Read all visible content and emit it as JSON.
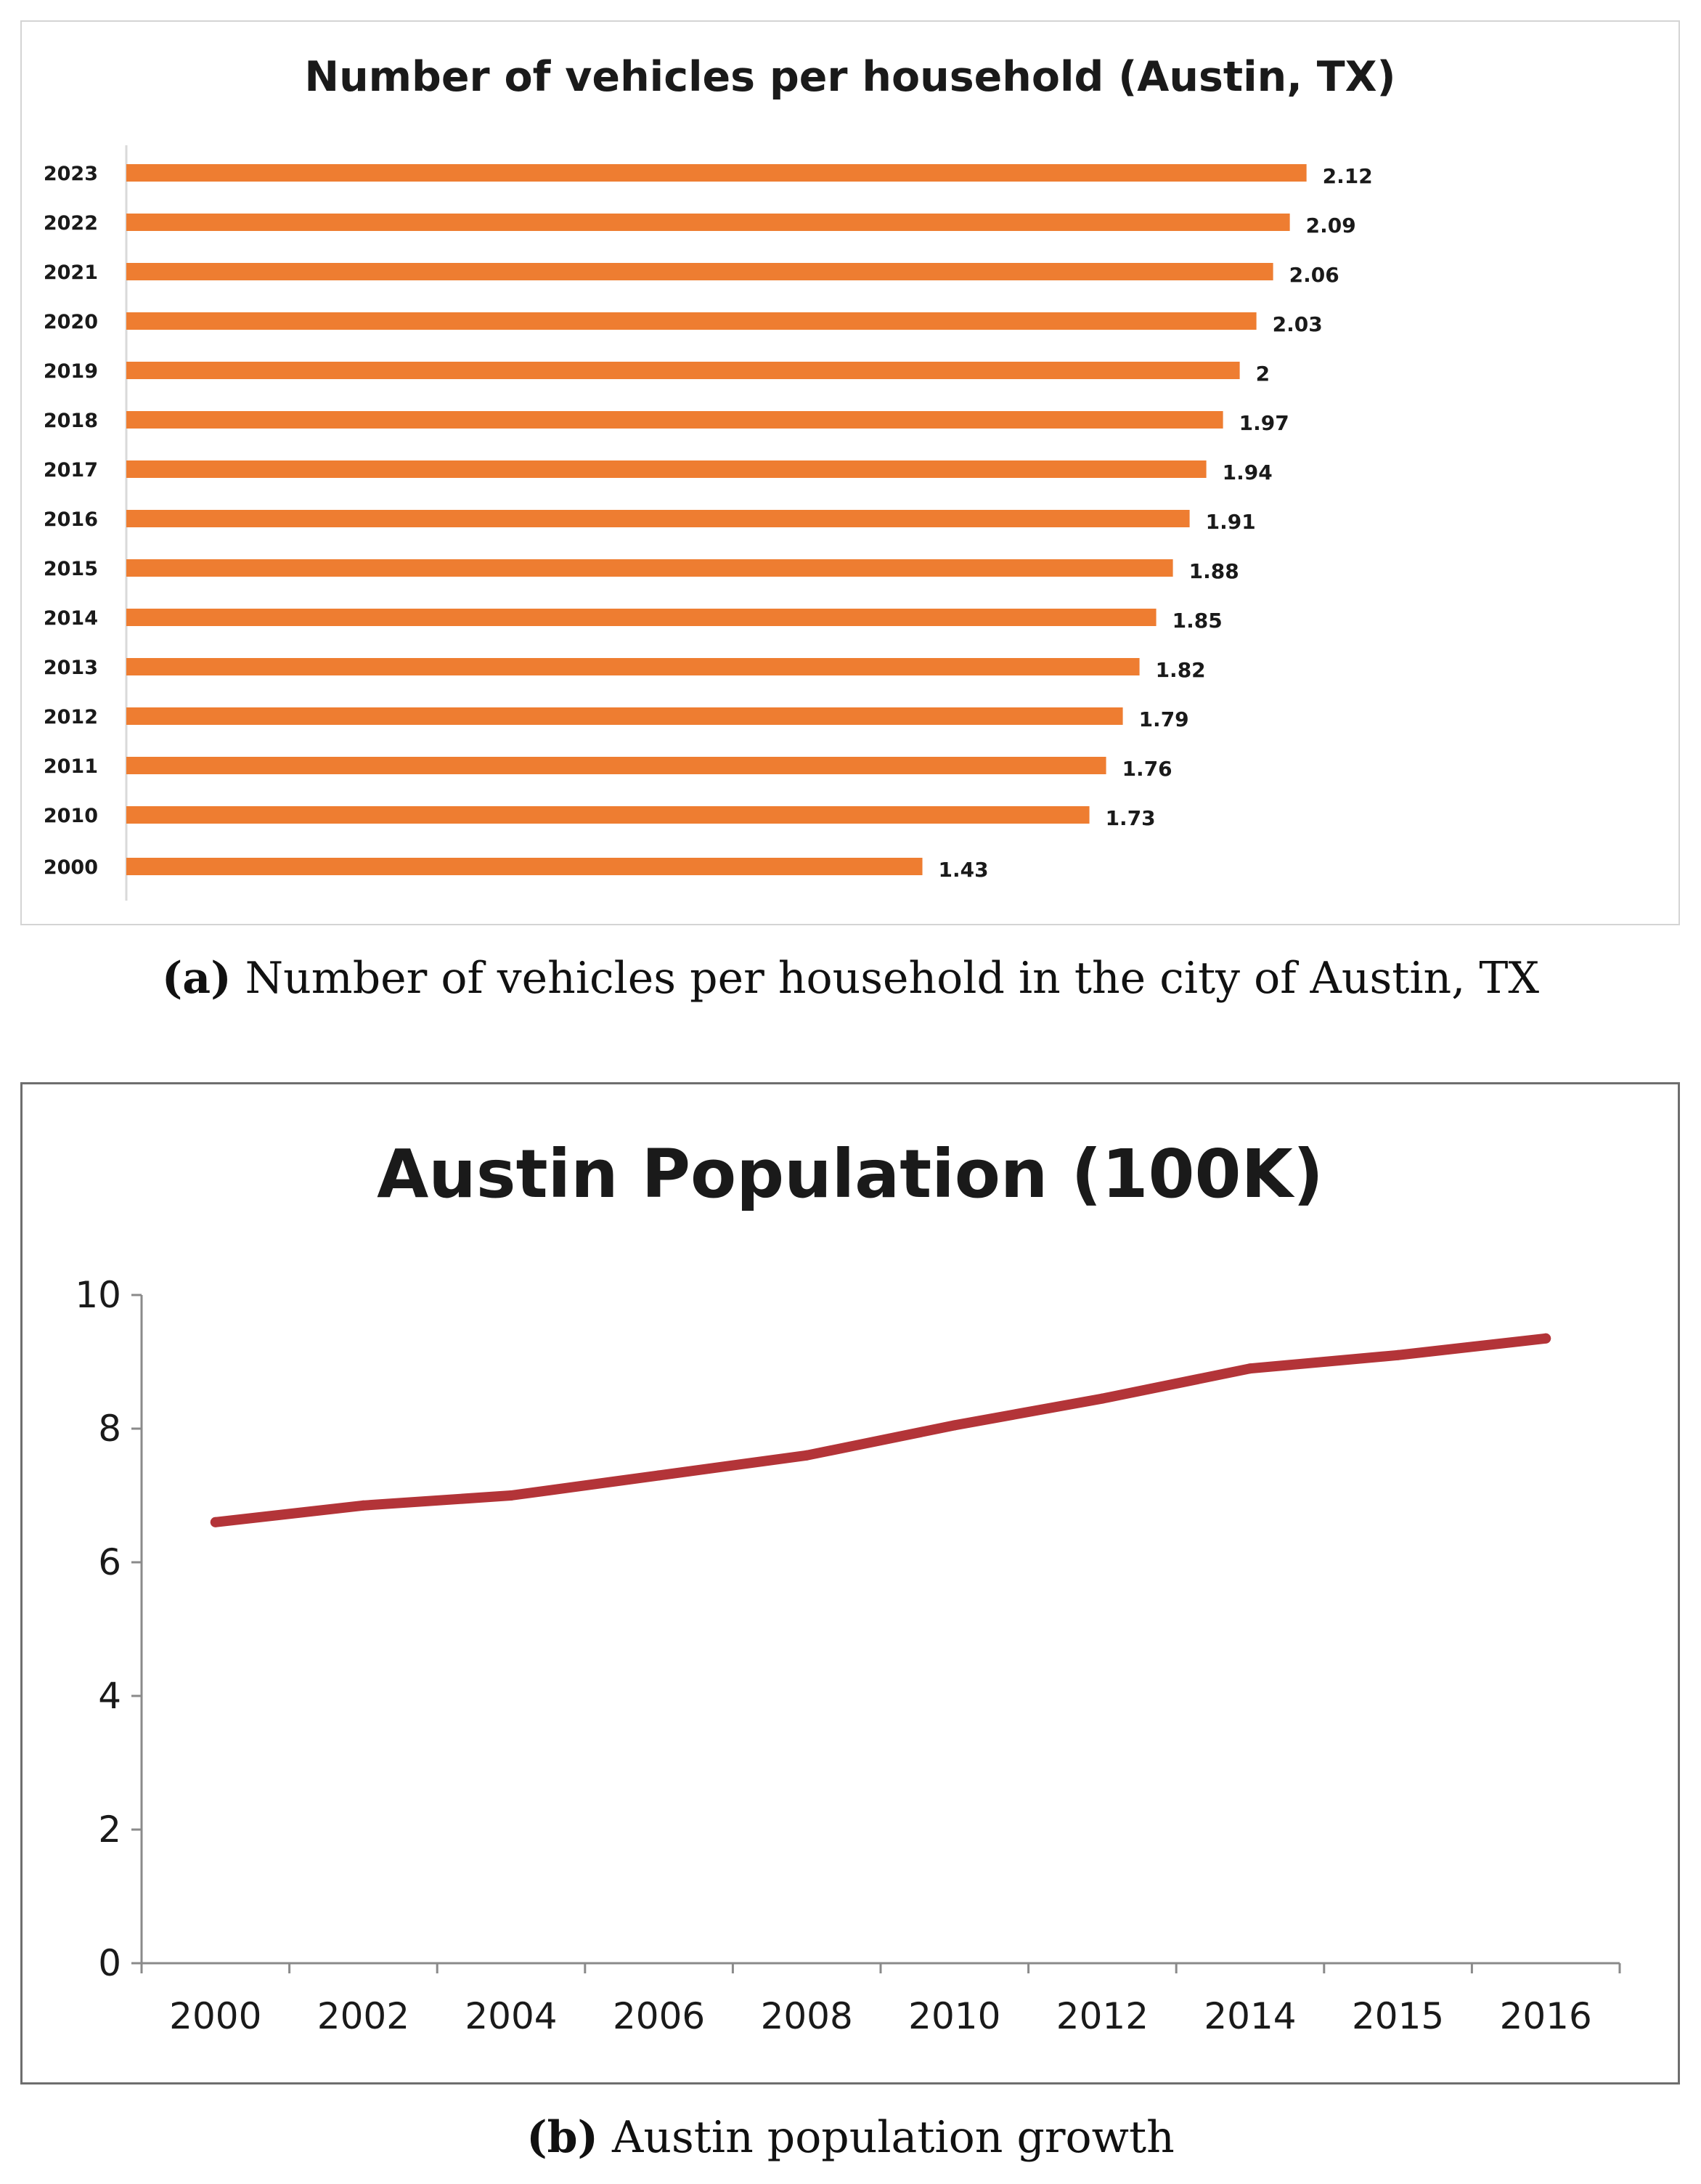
{
  "chart_data": [
    {
      "type": "bar",
      "orientation": "horizontal",
      "title": "Number of vehicles per household (Austin, TX)",
      "categories": [
        "2023",
        "2022",
        "2021",
        "2020",
        "2019",
        "2018",
        "2017",
        "2016",
        "2015",
        "2014",
        "2013",
        "2012",
        "2011",
        "2010",
        "2000"
      ],
      "values": [
        2.12,
        2.09,
        2.06,
        2.03,
        2,
        1.97,
        1.94,
        1.91,
        1.88,
        1.85,
        1.82,
        1.79,
        1.76,
        1.73,
        1.43
      ],
      "data_labels": [
        "2.12",
        "2.09",
        "2.06",
        "2.03",
        "2",
        "1.97",
        "1.94",
        "1.91",
        "1.88",
        "1.85",
        "1.82",
        "1.79",
        "1.76",
        "1.73",
        "1.43"
      ],
      "xlim": [
        0,
        2.35
      ],
      "color": "#ee7d31",
      "grid": false
    },
    {
      "type": "line",
      "title": "Austin Population (100K)",
      "categories": [
        "2000",
        "2002",
        "2004",
        "2006",
        "2008",
        "2010",
        "2012",
        "2014",
        "2015",
        "2016"
      ],
      "values": [
        6.6,
        6.85,
        7.0,
        7.3,
        7.6,
        8.05,
        8.45,
        8.9,
        9.1,
        9.35
      ],
      "ylim": [
        0,
        10
      ],
      "yticks": [
        "0",
        "2",
        "4",
        "6",
        "8",
        "10"
      ],
      "color": "#b33438",
      "grid": false
    }
  ],
  "captions": {
    "a": {
      "tag": "(a)",
      "text": "Number of vehicles per household in the city of Austin, TX"
    },
    "b": {
      "tag": "(b)",
      "text": "Austin population growth"
    }
  }
}
